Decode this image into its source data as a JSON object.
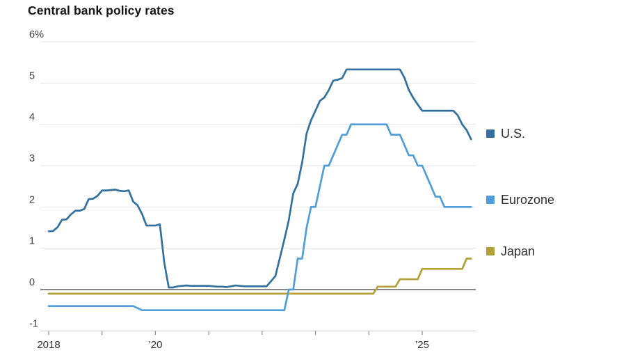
{
  "chart_data": {
    "type": "line",
    "title": "Central bank policy rates",
    "ylim": [
      -1,
      6
    ],
    "grid": true,
    "legend_position": "right",
    "x_axis": {
      "start_year": 2018,
      "ticks": [
        {
          "year": 2018,
          "label": "2018"
        },
        {
          "year": 2019,
          "label": ""
        },
        {
          "year": 2020,
          "label": "’20"
        },
        {
          "year": 2021,
          "label": ""
        },
        {
          "year": 2022,
          "label": ""
        },
        {
          "year": 2023,
          "label": ""
        },
        {
          "year": 2024,
          "label": ""
        },
        {
          "year": 2025,
          "label": "’25"
        }
      ]
    },
    "y_ticks": [
      {
        "value": 6,
        "label": "6%"
      },
      {
        "value": 5,
        "label": "5"
      },
      {
        "value": 4,
        "label": "4"
      },
      {
        "value": 3,
        "label": "3"
      },
      {
        "value": 2,
        "label": "2"
      },
      {
        "value": 1,
        "label": "1"
      },
      {
        "value": 0,
        "label": "0"
      },
      {
        "value": -1,
        "label": "-1"
      }
    ],
    "series": [
      {
        "name": "U.S.",
        "color": "#31709f",
        "start": "2018-01",
        "frequency": "monthly",
        "monthly_values": [
          1.41,
          1.42,
          1.51,
          1.69,
          1.7,
          1.82,
          1.91,
          1.91,
          1.95,
          2.19,
          2.2,
          2.27,
          2.4,
          2.4,
          2.41,
          2.42,
          2.39,
          2.38,
          2.4,
          2.13,
          2.04,
          1.83,
          1.55,
          1.55,
          1.55,
          1.58,
          0.65,
          0.05,
          0.05,
          0.08,
          0.09,
          0.1,
          0.09,
          0.09,
          0.09,
          0.09,
          0.09,
          0.08,
          0.07,
          0.07,
          0.06,
          0.08,
          0.1,
          0.09,
          0.08,
          0.08,
          0.08,
          0.08,
          0.08,
          0.08,
          0.2,
          0.33,
          0.77,
          1.21,
          1.68,
          2.33,
          2.56,
          3.08,
          3.78,
          4.1,
          4.33,
          4.57,
          4.65,
          4.83,
          5.06,
          5.08,
          5.12,
          5.33,
          5.33,
          5.33,
          5.33,
          5.33,
          5.33,
          5.33,
          5.33,
          5.33,
          5.33,
          5.33,
          5.33,
          5.33,
          5.13,
          4.83,
          4.64,
          4.48,
          4.33,
          4.33,
          4.33,
          4.33,
          4.33,
          4.33,
          4.33,
          4.33,
          4.22,
          4.0,
          3.86,
          3.64
        ]
      },
      {
        "name": "Eurozone",
        "color": "#4f9ed9",
        "start": "2018-01",
        "frequency": "monthly",
        "monthly_values": [
          -0.4,
          -0.4,
          -0.4,
          -0.4,
          -0.4,
          -0.4,
          -0.4,
          -0.4,
          -0.4,
          -0.4,
          -0.4,
          -0.4,
          -0.4,
          -0.4,
          -0.4,
          -0.4,
          -0.4,
          -0.4,
          -0.4,
          -0.4,
          -0.45,
          -0.5,
          -0.5,
          -0.5,
          -0.5,
          -0.5,
          -0.5,
          -0.5,
          -0.5,
          -0.5,
          -0.5,
          -0.5,
          -0.5,
          -0.5,
          -0.5,
          -0.5,
          -0.5,
          -0.5,
          -0.5,
          -0.5,
          -0.5,
          -0.5,
          -0.5,
          -0.5,
          -0.5,
          -0.5,
          -0.5,
          -0.5,
          -0.5,
          -0.5,
          -0.5,
          -0.5,
          -0.5,
          -0.5,
          0.0,
          0.0,
          0.75,
          0.75,
          1.5,
          2.0,
          2.0,
          2.5,
          3.0,
          3.0,
          3.25,
          3.5,
          3.75,
          3.75,
          4.0,
          4.0,
          4.0,
          4.0,
          4.0,
          4.0,
          4.0,
          4.0,
          4.0,
          3.75,
          3.75,
          3.75,
          3.5,
          3.25,
          3.25,
          3.0,
          3.0,
          2.75,
          2.5,
          2.25,
          2.25,
          2.0,
          2.0,
          2.0,
          2.0,
          2.0,
          2.0,
          2.0
        ]
      },
      {
        "name": "Japan",
        "color": "#b3a036",
        "start": "2018-01",
        "frequency": "monthly",
        "monthly_values": [
          -0.1,
          -0.1,
          -0.1,
          -0.1,
          -0.1,
          -0.1,
          -0.1,
          -0.1,
          -0.1,
          -0.1,
          -0.1,
          -0.1,
          -0.1,
          -0.1,
          -0.1,
          -0.1,
          -0.1,
          -0.1,
          -0.1,
          -0.1,
          -0.1,
          -0.1,
          -0.1,
          -0.1,
          -0.1,
          -0.1,
          -0.1,
          -0.1,
          -0.1,
          -0.1,
          -0.1,
          -0.1,
          -0.1,
          -0.1,
          -0.1,
          -0.1,
          -0.1,
          -0.1,
          -0.1,
          -0.1,
          -0.1,
          -0.1,
          -0.1,
          -0.1,
          -0.1,
          -0.1,
          -0.1,
          -0.1,
          -0.1,
          -0.1,
          -0.1,
          -0.1,
          -0.1,
          -0.1,
          -0.1,
          -0.1,
          -0.1,
          -0.1,
          -0.1,
          -0.1,
          -0.1,
          -0.1,
          -0.1,
          -0.1,
          -0.1,
          -0.1,
          -0.1,
          -0.1,
          -0.1,
          -0.1,
          -0.1,
          -0.1,
          -0.1,
          -0.1,
          0.07,
          0.07,
          0.07,
          0.07,
          0.07,
          0.25,
          0.25,
          0.25,
          0.25,
          0.25,
          0.5,
          0.5,
          0.5,
          0.5,
          0.5,
          0.5,
          0.5,
          0.5,
          0.5,
          0.5,
          0.75,
          0.75
        ]
      }
    ]
  }
}
